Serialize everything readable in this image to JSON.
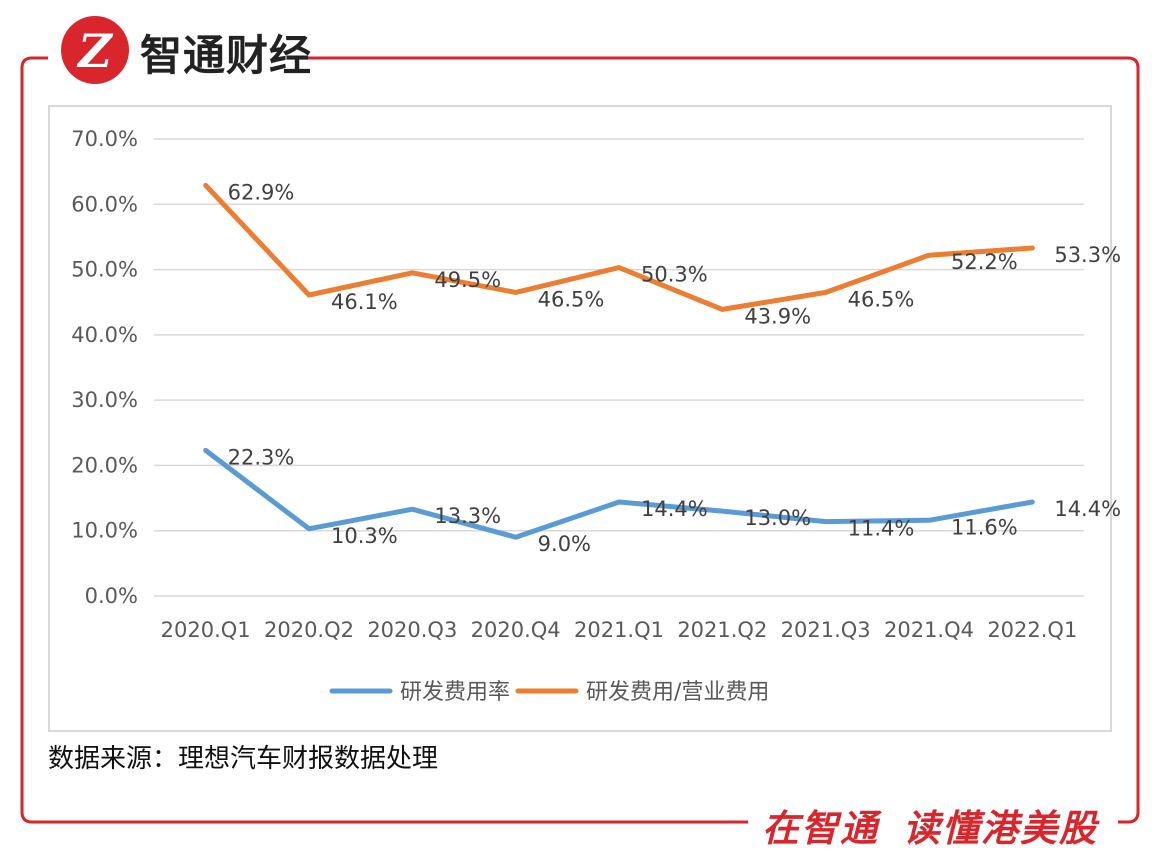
{
  "brand": {
    "logo_letter": "Z",
    "name": "智通财经",
    "color": "#d9262c"
  },
  "source": "数据来源：理想汽车财报数据处理",
  "slogan": {
    "part1": "在智通",
    "part2": "读懂港美股"
  },
  "chart_data": {
    "type": "line",
    "title": "",
    "xlabel": "",
    "ylabel": "",
    "categories": [
      "2020.Q1",
      "2020.Q2",
      "2020.Q3",
      "2020.Q4",
      "2021.Q1",
      "2021.Q2",
      "2021.Q3",
      "2021.Q4",
      "2022.Q1"
    ],
    "ylim": [
      0,
      70
    ],
    "yticks": [
      0,
      10,
      20,
      30,
      40,
      50,
      60,
      70
    ],
    "ytick_labels": [
      "0.0%",
      "10.0%",
      "20.0%",
      "30.0%",
      "40.0%",
      "50.0%",
      "60.0%",
      "70.0%"
    ],
    "grid": true,
    "legend": "bottom",
    "series": [
      {
        "name": "研发费用率",
        "color": "#5b9bd5",
        "values": [
          22.3,
          10.3,
          13.3,
          9.0,
          14.4,
          13.0,
          11.4,
          11.6,
          14.4
        ],
        "labels": [
          "22.3%",
          "10.3%",
          "13.3%",
          "9.0%",
          "14.4%",
          "13.0%",
          "11.4%",
          "11.6%",
          "14.4%"
        ]
      },
      {
        "name": "研发费用/营业费用",
        "color": "#ed7d31",
        "values": [
          62.9,
          46.1,
          49.5,
          46.5,
          50.3,
          43.9,
          46.5,
          52.2,
          53.3
        ],
        "labels": [
          "62.9%",
          "46.1%",
          "49.5%",
          "46.5%",
          "50.3%",
          "43.9%",
          "46.5%",
          "52.2%",
          "53.3%"
        ]
      }
    ]
  }
}
